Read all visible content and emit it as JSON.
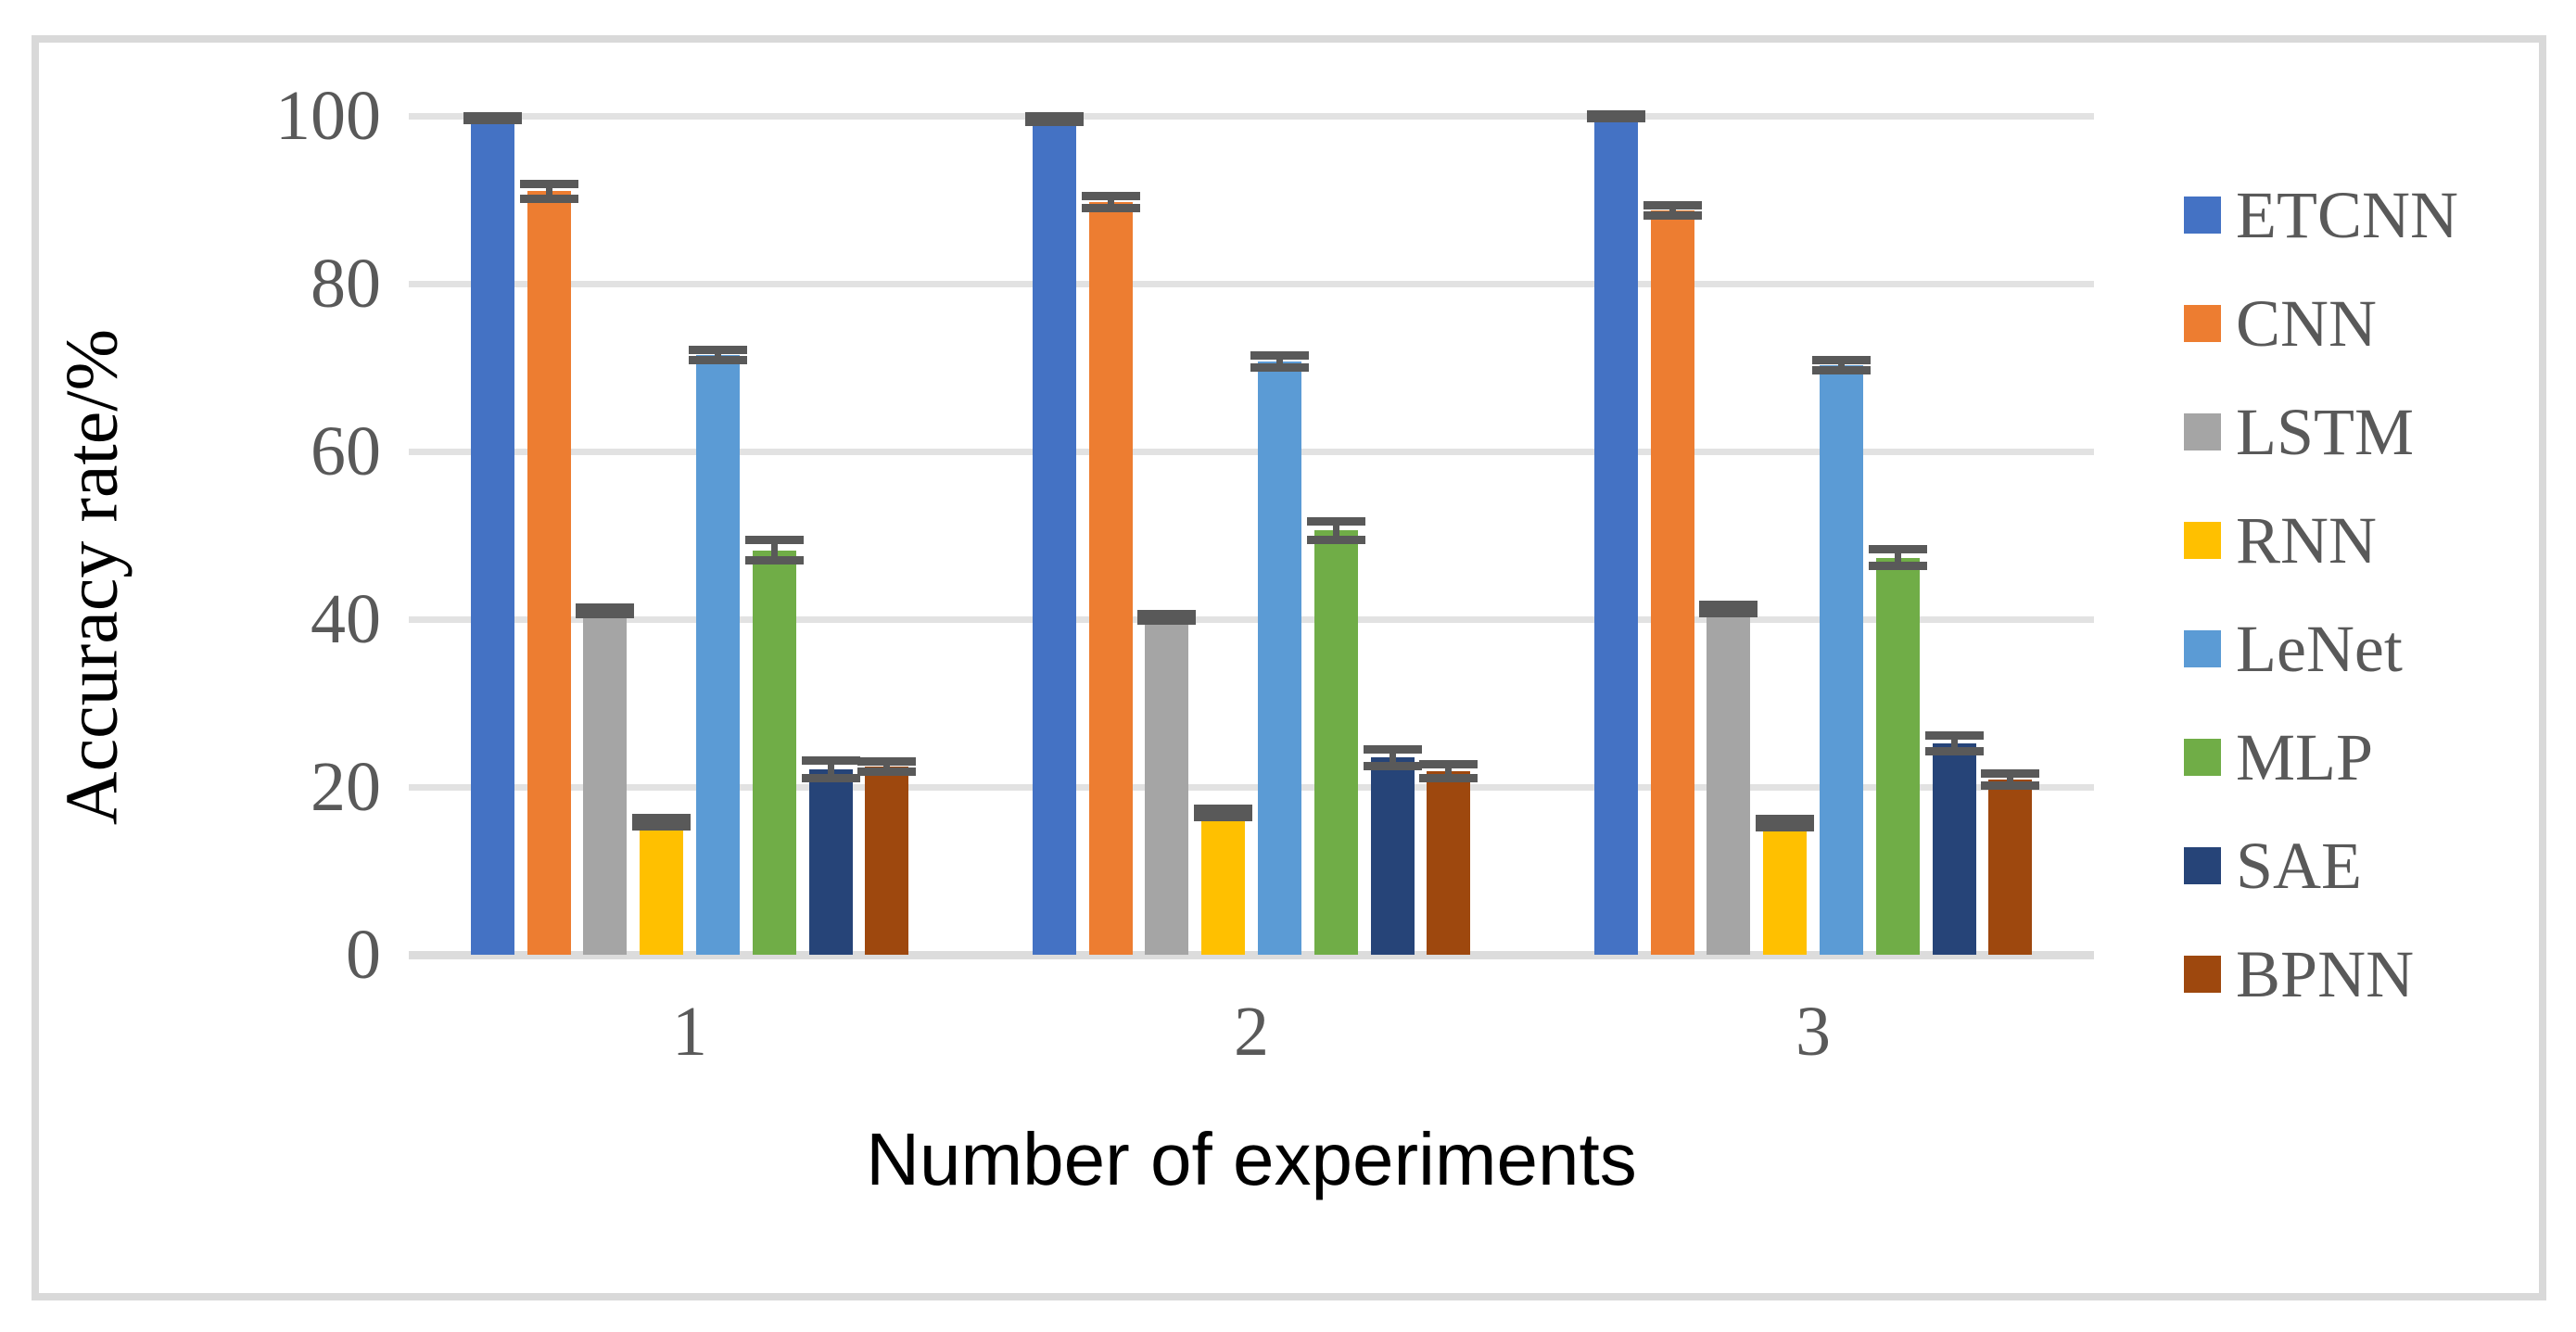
{
  "figure": {
    "kind": "grouped bar chart with error bars"
  },
  "chart_data": {
    "type": "bar",
    "title": "",
    "xlabel": "Number of experiments",
    "ylabel": "Accuracy rate/%",
    "categories": [
      "1",
      "2",
      "3"
    ],
    "ylim": [
      0,
      100
    ],
    "yticks": [
      0,
      20,
      40,
      60,
      80,
      100
    ],
    "grid": "horizontal",
    "legend_position": "right",
    "axis_text_color": "#595959",
    "error_bar_color": "#595959",
    "gridline_color": "#E2E2E2",
    "frame_border_color": "#D9D9D9",
    "series": [
      {
        "name": "ETCNN",
        "color": "#4472C4",
        "values": [
          99.7,
          99.6,
          99.9
        ],
        "errors": [
          0.2,
          0.3,
          0.15
        ]
      },
      {
        "name": "CNN",
        "color": "#ED7D31",
        "values": [
          91.0,
          89.7,
          88.7
        ],
        "errors": [
          0.9,
          0.7,
          0.6
        ]
      },
      {
        "name": "LSTM",
        "color": "#A5A5A5",
        "values": [
          41.0,
          40.2,
          41.2
        ],
        "errors": [
          0.4,
          0.4,
          0.5
        ]
      },
      {
        "name": "RNN",
        "color": "#FFC000",
        "values": [
          15.8,
          16.9,
          15.7
        ],
        "errors": [
          0.5,
          0.5,
          0.5
        ]
      },
      {
        "name": "LeNet",
        "color": "#5B9BD5",
        "values": [
          71.5,
          70.7,
          70.3
        ],
        "errors": [
          0.6,
          0.7,
          0.6
        ]
      },
      {
        "name": "MLP",
        "color": "#70AD47",
        "values": [
          48.2,
          50.6,
          47.3
        ],
        "errors": [
          1.2,
          1.1,
          1.0
        ]
      },
      {
        "name": "SAE",
        "color": "#264478",
        "values": [
          22.1,
          23.5,
          25.2
        ],
        "errors": [
          1.0,
          1.0,
          0.9
        ]
      },
      {
        "name": "BPNN",
        "color": "#9E480E",
        "values": [
          22.4,
          21.9,
          20.9
        ],
        "errors": [
          0.6,
          0.8,
          0.7
        ]
      }
    ]
  }
}
